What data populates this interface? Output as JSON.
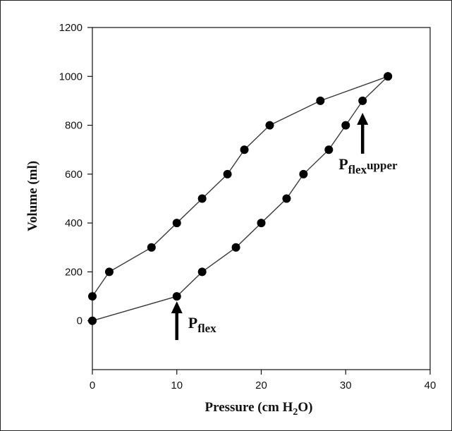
{
  "chart_data": {
    "type": "scatter",
    "title": "",
    "xlabel": "Pressure (cm H2O)",
    "ylabel": "Volume (ml)",
    "xlim": [
      0,
      40
    ],
    "ylim": [
      -200,
      1200
    ],
    "xticks": [
      0,
      10,
      20,
      30,
      40
    ],
    "yticks": [
      0,
      200,
      400,
      600,
      800,
      1000,
      1200
    ],
    "grid": false,
    "legend": "none",
    "series": [
      {
        "points": [
          [
            0,
            0
          ],
          [
            10,
            100
          ],
          [
            13,
            200
          ],
          [
            17,
            300
          ],
          [
            20,
            400
          ],
          [
            23,
            500
          ],
          [
            25,
            600
          ],
          [
            28,
            700
          ],
          [
            30,
            800
          ],
          [
            32,
            900
          ],
          [
            35,
            1000
          ]
        ]
      },
      {
        "points": [
          [
            0,
            100
          ],
          [
            2,
            200
          ],
          [
            7,
            300
          ],
          [
            10,
            400
          ],
          [
            13,
            500
          ],
          [
            16,
            600
          ],
          [
            18,
            700
          ],
          [
            21,
            800
          ],
          [
            27,
            900
          ],
          [
            35,
            1000
          ]
        ]
      }
    ],
    "annotations": [
      {
        "main": "P",
        "sub": "flex",
        "suffix": "",
        "x": 10,
        "y": 100
      },
      {
        "main": "P",
        "sub": "flex",
        "suffix": "upper",
        "x": 32,
        "y": 900
      }
    ]
  },
  "labels": {
    "xlabel_pre": "Pressure (cm H",
    "xlabel_sub": "2",
    "xlabel_post": "O)",
    "ylabel": "Volume (ml)"
  },
  "colors": {
    "line": "#3a3a3a",
    "marker": "#000000",
    "axis": "#111111"
  }
}
